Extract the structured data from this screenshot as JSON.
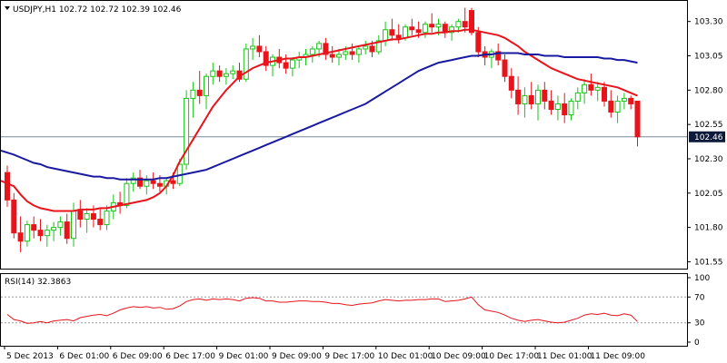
{
  "chart_data": [
    {
      "type": "candlestick",
      "symbol": "USDJPY,H1",
      "ohlc_header": [
        "102.72",
        "102.72",
        "102.39",
        "102.46"
      ],
      "title": "USDJPY,H1  102.72 102.72 102.39 102.46",
      "current_price": "102.46",
      "ylim": [
        101.5,
        103.45
      ],
      "y_ticks": [
        "103.30",
        "103.05",
        "102.80",
        "102.55",
        "102.30",
        "102.05",
        "101.80",
        "101.55"
      ],
      "x_ticks": [
        "5 Dec 2013",
        "6 Dec 01:00",
        "6 Dec 09:00",
        "6 Dec 17:00",
        "9 Dec 01:00",
        "9 Dec 09:00",
        "9 Dec 17:00",
        "10 Dec 01:00",
        "10 Dec 09:00",
        "10 Dec 17:00",
        "11 Dec 01:00",
        "11 Dec 09:00"
      ],
      "candles": [
        [
          102.2,
          102.25,
          101.95,
          102.0
        ],
        [
          102.0,
          102.05,
          101.72,
          101.76
        ],
        [
          101.76,
          101.88,
          101.62,
          101.7
        ],
        [
          101.7,
          101.85,
          101.66,
          101.82
        ],
        [
          101.82,
          101.88,
          101.72,
          101.78
        ],
        [
          101.78,
          101.86,
          101.7,
          101.74
        ],
        [
          101.74,
          101.82,
          101.66,
          101.78
        ],
        [
          101.78,
          101.84,
          101.7,
          101.8
        ],
        [
          101.8,
          101.88,
          101.74,
          101.84
        ],
        [
          101.84,
          101.9,
          101.68,
          101.72
        ],
        [
          101.72,
          101.98,
          101.66,
          101.92
        ],
        [
          101.92,
          102.0,
          101.8,
          101.86
        ],
        [
          101.86,
          101.94,
          101.76,
          101.9
        ],
        [
          101.9,
          101.96,
          101.8,
          101.86
        ],
        [
          101.86,
          101.94,
          101.78,
          101.82
        ],
        [
          101.82,
          101.96,
          101.78,
          101.92
        ],
        [
          101.92,
          102.04,
          101.86,
          101.98
        ],
        [
          101.98,
          102.06,
          101.9,
          101.96
        ],
        [
          101.96,
          102.16,
          101.94,
          102.12
        ],
        [
          102.12,
          102.2,
          102.06,
          102.16
        ],
        [
          102.16,
          102.22,
          102.08,
          102.1
        ],
        [
          102.1,
          102.18,
          102.04,
          102.14
        ],
        [
          102.14,
          102.2,
          102.08,
          102.12
        ],
        [
          102.12,
          102.18,
          102.06,
          102.1
        ],
        [
          102.1,
          102.16,
          102.04,
          102.14
        ],
        [
          102.14,
          102.2,
          102.08,
          102.12
        ],
        [
          102.12,
          102.3,
          102.1,
          102.26
        ],
        [
          102.26,
          102.8,
          102.22,
          102.74
        ],
        [
          102.74,
          102.86,
          102.6,
          102.8
        ],
        [
          102.8,
          102.94,
          102.7,
          102.76
        ],
        [
          102.76,
          102.92,
          102.66,
          102.9
        ],
        [
          102.9,
          103.0,
          102.84,
          102.94
        ],
        [
          102.94,
          102.98,
          102.86,
          102.9
        ],
        [
          102.9,
          102.96,
          102.84,
          102.92
        ],
        [
          102.92,
          102.98,
          102.88,
          102.94
        ],
        [
          102.94,
          103.0,
          102.86,
          102.88
        ],
        [
          102.88,
          103.14,
          102.86,
          103.1
        ],
        [
          103.1,
          103.18,
          103.02,
          103.12
        ],
        [
          103.12,
          103.2,
          103.04,
          103.08
        ],
        [
          103.08,
          103.12,
          102.94,
          102.98
        ],
        [
          102.98,
          103.06,
          102.9,
          103.04
        ],
        [
          103.04,
          103.1,
          102.96,
          103.0
        ],
        [
          103.0,
          103.06,
          102.92,
          102.96
        ],
        [
          102.96,
          103.04,
          102.9,
          103.02
        ],
        [
          103.02,
          103.08,
          102.96,
          103.04
        ],
        [
          103.04,
          103.1,
          102.98,
          103.06
        ],
        [
          103.06,
          103.12,
          103.0,
          103.1
        ],
        [
          103.1,
          103.16,
          103.04,
          103.14
        ],
        [
          103.14,
          103.18,
          103.02,
          103.06
        ],
        [
          103.06,
          103.12,
          103.0,
          103.04
        ],
        [
          103.04,
          103.1,
          102.98,
          103.06
        ],
        [
          103.06,
          103.12,
          103.02,
          103.08
        ],
        [
          103.08,
          103.14,
          103.02,
          103.06
        ],
        [
          103.06,
          103.12,
          103.0,
          103.1
        ],
        [
          103.1,
          103.16,
          103.06,
          103.12
        ],
        [
          103.12,
          103.16,
          103.04,
          103.08
        ],
        [
          103.08,
          103.2,
          103.06,
          103.16
        ],
        [
          103.16,
          103.3,
          103.12,
          103.24
        ],
        [
          103.24,
          103.32,
          103.16,
          103.2
        ],
        [
          103.2,
          103.28,
          103.14,
          103.18
        ],
        [
          103.18,
          103.28,
          103.16,
          103.26
        ],
        [
          103.26,
          103.32,
          103.2,
          103.24
        ],
        [
          103.24,
          103.3,
          103.18,
          103.22
        ],
        [
          103.22,
          103.3,
          103.18,
          103.28
        ],
        [
          103.28,
          103.36,
          103.22,
          103.26
        ],
        [
          103.26,
          103.32,
          103.2,
          103.28
        ],
        [
          103.28,
          103.3,
          103.18,
          103.22
        ],
        [
          103.22,
          103.28,
          103.16,
          103.26
        ],
        [
          103.26,
          103.32,
          103.22,
          103.3
        ],
        [
          103.3,
          103.4,
          103.22,
          103.26
        ],
        [
          103.38,
          103.4,
          103.2,
          103.22
        ],
        [
          103.22,
          103.26,
          103.04,
          103.08
        ],
        [
          103.08,
          103.12,
          102.98,
          103.04
        ],
        [
          103.04,
          103.1,
          102.96,
          103.08
        ],
        [
          103.08,
          103.14,
          102.98,
          103.02
        ],
        [
          103.02,
          103.06,
          102.86,
          102.9
        ],
        [
          102.9,
          102.96,
          102.74,
          102.8
        ],
        [
          102.8,
          102.9,
          102.62,
          102.7
        ],
        [
          102.7,
          102.82,
          102.6,
          102.76
        ],
        [
          102.76,
          102.86,
          102.66,
          102.7
        ],
        [
          102.7,
          102.84,
          102.58,
          102.8
        ],
        [
          102.8,
          102.86,
          102.66,
          102.72
        ],
        [
          102.72,
          102.8,
          102.62,
          102.66
        ],
        [
          102.66,
          102.76,
          102.58,
          102.7
        ],
        [
          102.7,
          102.78,
          102.56,
          102.62
        ],
        [
          102.62,
          102.74,
          102.58,
          102.72
        ],
        [
          102.72,
          102.82,
          102.66,
          102.78
        ],
        [
          102.78,
          102.88,
          102.7,
          102.84
        ],
        [
          102.84,
          102.92,
          102.76,
          102.8
        ],
        [
          102.8,
          102.86,
          102.72,
          102.82
        ],
        [
          102.82,
          102.86,
          102.68,
          102.72
        ],
        [
          102.72,
          102.8,
          102.6,
          102.64
        ],
        [
          102.64,
          102.76,
          102.56,
          102.72
        ],
        [
          102.72,
          102.78,
          102.66,
          102.74
        ],
        [
          102.74,
          102.76,
          102.66,
          102.7
        ],
        [
          102.72,
          102.72,
          102.39,
          102.46
        ]
      ],
      "series": [
        {
          "name": "",
          "color": "#e8141c",
          "values": [
            102.14,
            102.1,
            102.04,
            101.99,
            101.96,
            101.94,
            101.93,
            101.92,
            101.92,
            101.92,
            101.92,
            101.93,
            101.93,
            101.93,
            101.94,
            101.94,
            101.95,
            101.96,
            101.97,
            101.98,
            101.99,
            102.0,
            102.02,
            102.05,
            102.1,
            102.18,
            102.28,
            102.36,
            102.44,
            102.52,
            102.6,
            102.68,
            102.74,
            102.8,
            102.85,
            102.9,
            102.93,
            102.96,
            102.98,
            103.0,
            103.01,
            103.02,
            103.03,
            103.03,
            103.04,
            103.04,
            103.05,
            103.06,
            103.07,
            103.08,
            103.09,
            103.1,
            103.11,
            103.12,
            103.13,
            103.14,
            103.15,
            103.16,
            103.17,
            103.17,
            103.18,
            103.19,
            103.2,
            103.21,
            103.21,
            103.22,
            103.22,
            103.23,
            103.23,
            103.24,
            103.24,
            103.23,
            103.22,
            103.21,
            103.2,
            103.18,
            103.15,
            103.12,
            103.08,
            103.05,
            103.02,
            102.99,
            102.96,
            102.94,
            102.92,
            102.9,
            102.88,
            102.87,
            102.86,
            102.85,
            102.84,
            102.83,
            102.82,
            102.8,
            102.78,
            102.76
          ]
        },
        {
          "name": "",
          "color": "#1a1aa0",
          "values": [
            102.36,
            102.33,
            102.31,
            102.29,
            102.27,
            102.26,
            102.24,
            102.23,
            102.22,
            102.21,
            102.2,
            102.19,
            102.18,
            102.17,
            102.17,
            102.16,
            102.16,
            102.15,
            102.15,
            102.15,
            102.15,
            102.15,
            102.15,
            102.16,
            102.16,
            102.17,
            102.18,
            102.19,
            102.2,
            102.21,
            102.22,
            102.24,
            102.26,
            102.28,
            102.3,
            102.32,
            102.34,
            102.36,
            102.38,
            102.4,
            102.42,
            102.44,
            102.46,
            102.48,
            102.5,
            102.52,
            102.54,
            102.56,
            102.58,
            102.6,
            102.62,
            102.64,
            102.66,
            102.68,
            102.7,
            102.73,
            102.76,
            102.79,
            102.82,
            102.85,
            102.88,
            102.91,
            102.94,
            102.96,
            102.98,
            103.0,
            103.01,
            103.02,
            103.03,
            103.04,
            103.05,
            103.05,
            103.06,
            103.06,
            103.07,
            103.07,
            103.07,
            103.07,
            103.06,
            103.06,
            103.06,
            103.05,
            103.05,
            103.05,
            103.04,
            103.04,
            103.04,
            103.04,
            103.04,
            103.04,
            103.03,
            103.03,
            103.02,
            103.02,
            103.01,
            103.0
          ]
        }
      ]
    },
    {
      "type": "line",
      "title": "RSI(14) 32.3863",
      "ylim": [
        0,
        100
      ],
      "y_ticks": [
        "100",
        "70",
        "30",
        "0"
      ],
      "levels": [
        70,
        30
      ],
      "series": [
        {
          "name": "RSI(14)",
          "color": "#e8141c",
          "values": [
            43,
            35,
            33,
            29,
            30,
            32,
            30,
            33,
            34,
            35,
            33,
            38,
            40,
            42,
            43,
            41,
            45,
            50,
            53,
            55,
            54,
            55,
            53,
            54,
            51,
            52,
            56,
            63,
            66,
            67,
            65,
            67,
            66,
            67,
            66,
            64,
            68,
            69,
            68,
            64,
            64,
            62,
            62,
            63,
            64,
            64,
            63,
            63,
            62,
            60,
            60,
            58,
            57,
            59,
            60,
            61,
            64,
            66,
            65,
            64,
            65,
            65,
            66,
            66,
            67,
            67,
            63,
            64,
            65,
            67,
            70,
            58,
            50,
            48,
            46,
            42,
            37,
            34,
            32,
            34,
            35,
            33,
            31,
            30,
            31,
            34,
            37,
            42,
            44,
            43,
            45,
            42,
            41,
            44,
            42,
            32
          ]
        }
      ]
    }
  ]
}
